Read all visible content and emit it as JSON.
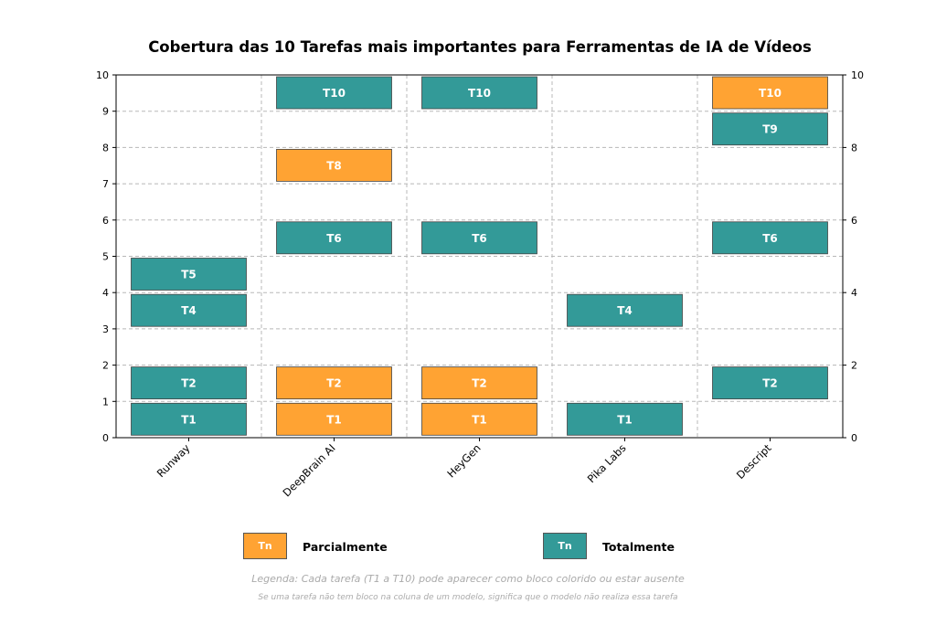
{
  "chart_data": {
    "type": "bar",
    "title": "Cobertura das 10 Tarefas mais importantes para Ferramentas de IA de Vídeos",
    "categories": [
      "Runway",
      "DeepBrain AI",
      "HeyGen",
      "Pika Labs",
      "Descript"
    ],
    "ylim": [
      0,
      10
    ],
    "yticks_left": [
      "0",
      "1",
      "2",
      "3",
      "4",
      "5",
      "6",
      "7",
      "8",
      "9",
      "10"
    ],
    "yticks_right": [
      "0",
      "2",
      "4",
      "6",
      "8",
      "10"
    ],
    "grid": true,
    "blocks": [
      {
        "model": "Runway",
        "task": "T1",
        "level": 1,
        "status": "Totalmente"
      },
      {
        "model": "Runway",
        "task": "T2",
        "level": 2,
        "status": "Totalmente"
      },
      {
        "model": "Runway",
        "task": "T4",
        "level": 4,
        "status": "Totalmente"
      },
      {
        "model": "Runway",
        "task": "T5",
        "level": 5,
        "status": "Totalmente"
      },
      {
        "model": "DeepBrain AI",
        "task": "T1",
        "level": 1,
        "status": "Parcialmente"
      },
      {
        "model": "DeepBrain AI",
        "task": "T2",
        "level": 2,
        "status": "Parcialmente"
      },
      {
        "model": "DeepBrain AI",
        "task": "T6",
        "level": 6,
        "status": "Totalmente"
      },
      {
        "model": "DeepBrain AI",
        "task": "T8",
        "level": 8,
        "status": "Parcialmente"
      },
      {
        "model": "DeepBrain AI",
        "task": "T10",
        "level": 10,
        "status": "Totalmente"
      },
      {
        "model": "HeyGen",
        "task": "T1",
        "level": 1,
        "status": "Parcialmente"
      },
      {
        "model": "HeyGen",
        "task": "T2",
        "level": 2,
        "status": "Parcialmente"
      },
      {
        "model": "HeyGen",
        "task": "T6",
        "level": 6,
        "status": "Totalmente"
      },
      {
        "model": "HeyGen",
        "task": "T10",
        "level": 10,
        "status": "Totalmente"
      },
      {
        "model": "Pika Labs",
        "task": "T1",
        "level": 1,
        "status": "Totalmente"
      },
      {
        "model": "Pika Labs",
        "task": "T4",
        "level": 4,
        "status": "Totalmente"
      },
      {
        "model": "Descript",
        "task": "T2",
        "level": 2,
        "status": "Totalmente"
      },
      {
        "model": "Descript",
        "task": "T6",
        "level": 6,
        "status": "Totalmente"
      },
      {
        "model": "Descript",
        "task": "T9",
        "level": 9,
        "status": "Totalmente"
      },
      {
        "model": "Descript",
        "task": "T10",
        "level": 10,
        "status": "Parcialmente"
      }
    ],
    "colors": {
      "Parcialmente": "#ffa333",
      "Totalmente": "#339a98"
    },
    "legend": {
      "swatch_text": "Tn",
      "items": [
        {
          "label": "Parcialmente",
          "status": "Parcialmente"
        },
        {
          "label": "Totalmente",
          "status": "Totalmente"
        }
      ]
    },
    "notes": [
      "Legenda: Cada tarefa (T1 a T10) pode aparecer como bloco colorido ou estar ausente",
      "Se uma tarefa não tem bloco na coluna de um modelo, significa que o modelo não realiza essa tarefa"
    ]
  }
}
